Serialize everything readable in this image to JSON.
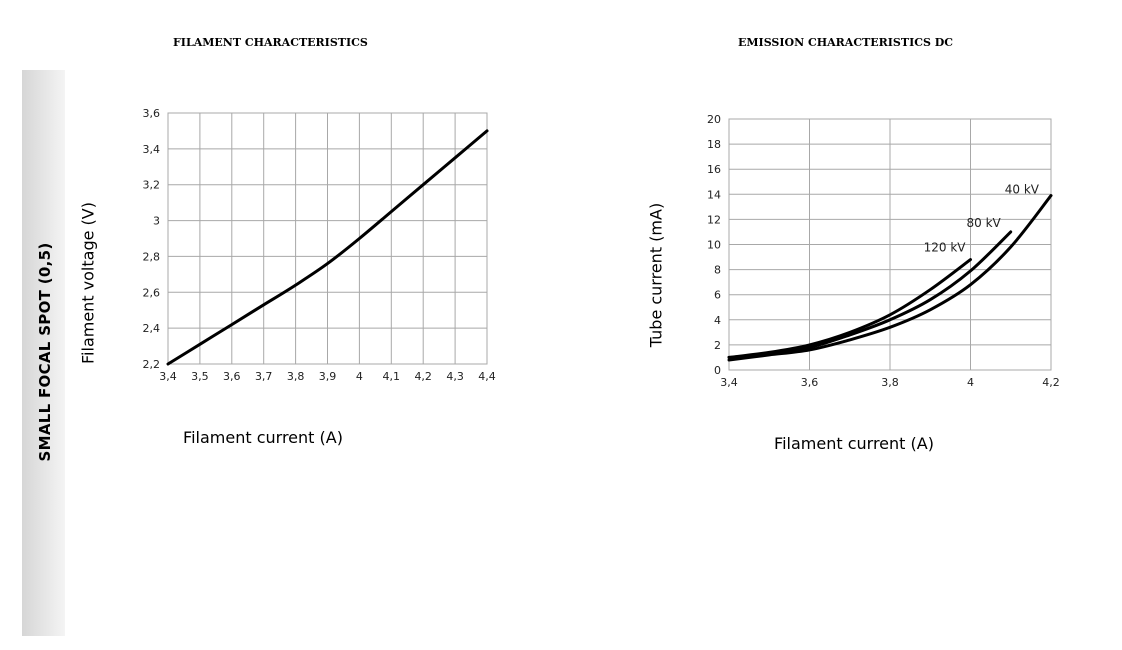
{
  "side_label": "SMALL FOCAL SPOT (0,5)",
  "colors": {
    "grid": "#a8a8a8",
    "line": "#000000"
  },
  "chart_data": [
    {
      "type": "line",
      "title": "FILAMENT CHARACTERISTICS",
      "xlabel": "Filament current (A)",
      "ylabel": "Filament voltage (V)",
      "xlim": [
        3.4,
        4.4
      ],
      "ylim": [
        2.2,
        3.6
      ],
      "x_ticks": [
        3.4,
        3.5,
        3.6,
        3.7,
        3.8,
        3.9,
        4.0,
        4.1,
        4.2,
        4.3,
        4.4
      ],
      "y_ticks": [
        2.2,
        2.4,
        2.6,
        2.8,
        3.0,
        3.2,
        3.4,
        3.6
      ],
      "x_tick_labels": [
        "3,4",
        "3,5",
        "3,6",
        "3,7",
        "3,8",
        "3,9",
        "4",
        "4,1",
        "4,2",
        "4,3",
        "4,4"
      ],
      "y_tick_labels": [
        "2,2",
        "2,4",
        "2,6",
        "2,8",
        "3",
        "3,2",
        "3,4",
        "3,6"
      ],
      "grid": true,
      "series": [
        {
          "x": [
            3.4,
            3.5,
            3.6,
            3.7,
            3.8,
            3.9,
            4.0,
            4.1,
            4.2,
            4.3,
            4.4
          ],
          "y": [
            2.2,
            2.31,
            2.42,
            2.53,
            2.64,
            2.76,
            2.9,
            3.05,
            3.2,
            3.35,
            3.5
          ]
        }
      ]
    },
    {
      "type": "line",
      "title": "EMISSION CHARACTERISTICS DC",
      "xlabel": "Filament current (A)",
      "ylabel": "Tube current (mA)",
      "xlim": [
        3.4,
        4.2
      ],
      "ylim": [
        0,
        20
      ],
      "x_ticks": [
        3.4,
        3.6,
        3.8,
        4.0,
        4.2
      ],
      "y_ticks": [
        0,
        2,
        4,
        6,
        8,
        10,
        12,
        14,
        16,
        18,
        20
      ],
      "x_tick_labels": [
        "3,4",
        "3,6",
        "3,8",
        "4",
        "4,2"
      ],
      "y_tick_labels": [
        "0",
        "2",
        "4",
        "6",
        "8",
        "10",
        "12",
        "14",
        "16",
        "18",
        "20"
      ],
      "grid": true,
      "series": [
        {
          "name": "120 kV",
          "x": [
            3.4,
            3.5,
            3.6,
            3.7,
            3.8,
            3.9,
            4.0
          ],
          "y": [
            1.0,
            1.4,
            2.0,
            3.0,
            4.4,
            6.4,
            8.8
          ]
        },
        {
          "name": "80 kV",
          "x": [
            3.4,
            3.5,
            3.6,
            3.7,
            3.8,
            3.9,
            4.0,
            4.1
          ],
          "y": [
            1.0,
            1.3,
            1.8,
            2.8,
            4.0,
            5.6,
            7.9,
            11.0
          ]
        },
        {
          "name": "40 kV",
          "x": [
            3.4,
            3.5,
            3.6,
            3.7,
            3.8,
            3.9,
            4.0,
            4.1,
            4.2
          ],
          "y": [
            0.8,
            1.2,
            1.6,
            2.4,
            3.4,
            4.8,
            6.8,
            9.8,
            13.9
          ]
        }
      ]
    }
  ]
}
